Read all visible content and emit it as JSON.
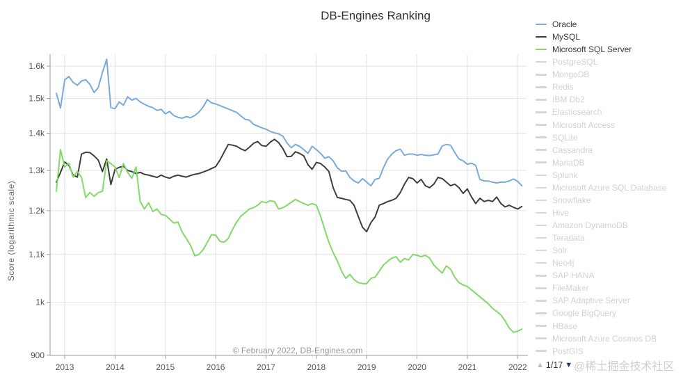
{
  "title": "DB-Engines Ranking",
  "y_axis_label": "Score (logarithmic scale)",
  "copyright": "© February 2022, DB-Engines.com",
  "watermark": "@稀土掘金技术社区",
  "pagination": {
    "up_symbol": "▲",
    "current": "1/17",
    "down_symbol": "▼"
  },
  "colors": {
    "oracle": "#79aadc",
    "mysql": "#3e3e3e",
    "mssql": "#83d967",
    "grid": "#e2e2e2",
    "axis": "#9b9b9b",
    "tick_text": "#565656",
    "inactive_swatch": "#d6d6d6",
    "inactive_text": "#d2d2d2",
    "pager_up": "#b9bec6",
    "pager_down": "#1d3c63"
  },
  "legend": {
    "items": [
      {
        "label": "Oracle",
        "color": "#79aadc",
        "active": true
      },
      {
        "label": "MySQL",
        "color": "#3e3e3e",
        "active": true
      },
      {
        "label": "Microsoft SQL Server",
        "color": "#83d967",
        "active": true
      },
      {
        "label": "PostgreSQL",
        "active": false
      },
      {
        "label": "MongoDB",
        "active": false
      },
      {
        "label": "Redis",
        "active": false
      },
      {
        "label": "IBM Db2",
        "active": false
      },
      {
        "label": "Elasticsearch",
        "active": false
      },
      {
        "label": "Microsoft Access",
        "active": false
      },
      {
        "label": "SQLite",
        "active": false
      },
      {
        "label": "Cassandra",
        "active": false
      },
      {
        "label": "MariaDB",
        "active": false
      },
      {
        "label": "Splunk",
        "active": false
      },
      {
        "label": "Microsoft Azure SQL Database",
        "active": false
      },
      {
        "label": "Snowflake",
        "active": false
      },
      {
        "label": "Hive",
        "active": false
      },
      {
        "label": "Amazon DynamoDB",
        "active": false
      },
      {
        "label": "Teradata",
        "active": false
      },
      {
        "label": "Solr",
        "active": false
      },
      {
        "label": "Neo4j",
        "active": false
      },
      {
        "label": "SAP HANA",
        "active": false
      },
      {
        "label": "FileMaker",
        "active": false
      },
      {
        "label": "SAP Adaptive Server",
        "active": false
      },
      {
        "label": "Google BigQuery",
        "active": false
      },
      {
        "label": "HBase",
        "active": false
      },
      {
        "label": "Microsoft Azure Cosmos DB",
        "active": false
      },
      {
        "label": "PostGIS",
        "active": false
      }
    ]
  },
  "chart_data": {
    "type": "line",
    "title": "DB-Engines Ranking",
    "ylabel": "Score (logarithmic scale)",
    "y_scale": "log",
    "ylim": [
      900,
      1645
    ],
    "grid": true,
    "legend_position": "right",
    "x_start": "2012-11",
    "x_step_months": 1,
    "x_end": "2022-02",
    "x_ticks": [
      {
        "label": "2013",
        "month_index": 2
      },
      {
        "label": "2014",
        "month_index": 14
      },
      {
        "label": "2015",
        "month_index": 26
      },
      {
        "label": "2016",
        "month_index": 38
      },
      {
        "label": "2017",
        "month_index": 50
      },
      {
        "label": "2018",
        "month_index": 62
      },
      {
        "label": "2019",
        "month_index": 74
      },
      {
        "label": "2020",
        "month_index": 86
      },
      {
        "label": "2021",
        "month_index": 98
      },
      {
        "label": "2022",
        "month_index": 110
      }
    ],
    "y_ticks": [
      {
        "label": "1.6k",
        "value": 1600
      },
      {
        "label": "1.5k",
        "value": 1500
      },
      {
        "label": "1.4k",
        "value": 1400
      },
      {
        "label": "1.3k",
        "value": 1300
      },
      {
        "label": "1.2k",
        "value": 1200
      },
      {
        "label": "1.1k",
        "value": 1100
      },
      {
        "label": "1k",
        "value": 1000
      },
      {
        "label": "900",
        "value": 900
      }
    ],
    "series": [
      {
        "name": "Oracle",
        "color": "#79aadc",
        "values": [
          1516,
          1472,
          1557,
          1567,
          1549,
          1540,
          1553,
          1557,
          1543,
          1518,
          1533,
          1580,
          1622,
          1473,
          1470,
          1490,
          1480,
          1505,
          1495,
          1500,
          1490,
          1483,
          1477,
          1473,
          1465,
          1468,
          1455,
          1462,
          1450,
          1445,
          1442,
          1447,
          1444,
          1450,
          1460,
          1475,
          1497,
          1487,
          1484,
          1479,
          1474,
          1469,
          1464,
          1459,
          1449,
          1439,
          1437,
          1425,
          1420,
          1415,
          1411,
          1405,
          1401,
          1398,
          1392,
          1373,
          1360,
          1369,
          1364,
          1355,
          1345,
          1364,
          1355,
          1345,
          1332,
          1336,
          1325,
          1307,
          1298,
          1299,
          1282,
          1273,
          1268,
          1279,
          1270,
          1261,
          1277,
          1280,
          1307,
          1330,
          1343,
          1352,
          1356,
          1340,
          1343,
          1343,
          1340,
          1342,
          1340,
          1339,
          1341,
          1343,
          1365,
          1369,
          1367,
          1347,
          1330,
          1325,
          1316,
          1319,
          1313,
          1277,
          1273,
          1273,
          1270,
          1268,
          1270,
          1270,
          1273,
          1278,
          1272,
          1261
        ]
      },
      {
        "name": "MySQL",
        "color": "#3e3e3e",
        "values": [
          1270,
          1295,
          1322,
          1313,
          1288,
          1283,
          1343,
          1348,
          1347,
          1338,
          1327,
          1297,
          1330,
          1264,
          1303,
          1308,
          1311,
          1300,
          1297,
          1292,
          1295,
          1290,
          1288,
          1285,
          1282,
          1288,
          1283,
          1280,
          1285,
          1288,
          1285,
          1283,
          1287,
          1290,
          1292,
          1296,
          1300,
          1305,
          1310,
          1327,
          1348,
          1369,
          1367,
          1364,
          1357,
          1352,
          1361,
          1372,
          1377,
          1366,
          1364,
          1375,
          1383,
          1374,
          1358,
          1336,
          1337,
          1349,
          1345,
          1338,
          1315,
          1303,
          1321,
          1318,
          1309,
          1297,
          1256,
          1232,
          1230,
          1227,
          1225,
          1213,
          1186,
          1161,
          1151,
          1172,
          1185,
          1213,
          1217,
          1222,
          1225,
          1230,
          1244,
          1265,
          1282,
          1279,
          1268,
          1277,
          1261,
          1256,
          1265,
          1282,
          1279,
          1270,
          1261,
          1265,
          1256,
          1242,
          1253,
          1233,
          1217,
          1230,
          1222,
          1225,
          1222,
          1233,
          1217,
          1209,
          1213,
          1208,
          1204,
          1210
        ]
      },
      {
        "name": "Microsoft SQL Server",
        "color": "#83d967",
        "values": [
          1247,
          1355,
          1309,
          1318,
          1283,
          1297,
          1282,
          1232,
          1244,
          1235,
          1244,
          1247,
          1325,
          1318,
          1309,
          1282,
          1318,
          1295,
          1280,
          1309,
          1222,
          1204,
          1219,
          1198,
          1204,
          1191,
          1189,
          1180,
          1171,
          1173,
          1150,
          1135,
          1120,
          1097,
          1100,
          1110,
          1127,
          1144,
          1143,
          1129,
          1127,
          1135,
          1156,
          1173,
          1187,
          1195,
          1204,
          1207,
          1213,
          1222,
          1219,
          1224,
          1222,
          1204,
          1207,
          1213,
          1220,
          1227,
          1222,
          1217,
          1213,
          1217,
          1213,
          1187,
          1156,
          1127,
          1104,
          1086,
          1064,
          1049,
          1057,
          1046,
          1040,
          1038,
          1038,
          1049,
          1051,
          1064,
          1077,
          1085,
          1092,
          1095,
          1083,
          1091,
          1088,
          1100,
          1098,
          1095,
          1098,
          1092,
          1077,
          1068,
          1060,
          1075,
          1068,
          1051,
          1040,
          1035,
          1032,
          1025,
          1018,
          1011,
          1004,
          997,
          988,
          982,
          975,
          964,
          950,
          942,
          944,
          948
        ]
      }
    ]
  }
}
